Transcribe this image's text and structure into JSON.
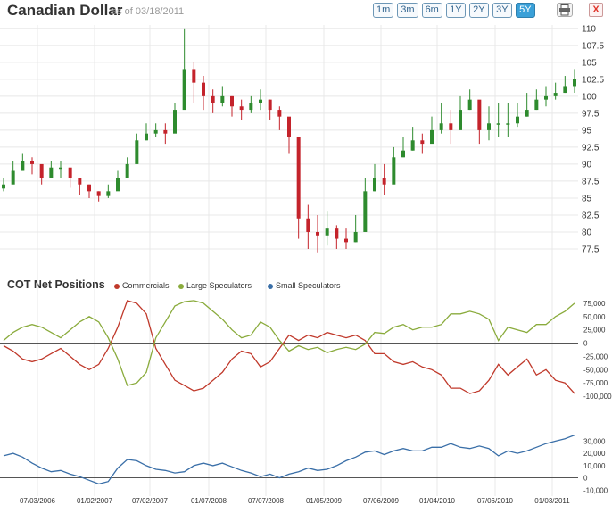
{
  "header": {
    "title": "Canadian Dollar",
    "as_of": "as of 03/18/2011",
    "ranges": [
      "1m",
      "3m",
      "6m",
      "1Y",
      "2Y",
      "3Y",
      "5Y"
    ],
    "active_range": "5Y",
    "print_icon": "printer-icon",
    "close_label": "X",
    "close_color": "#e0352b"
  },
  "cot": {
    "title": "COT Net Positions"
  },
  "chart_data": [
    {
      "type": "candlestick",
      "title": "Canadian Dollar",
      "ylim": [
        75,
        110.5
      ],
      "yticks": [
        "77.5",
        "80",
        "82.5",
        "85",
        "87.5",
        "90",
        "92.5",
        "95",
        "97.5",
        "100",
        "102.5",
        "105",
        "107.5",
        "110"
      ],
      "up_color": "#2e8b2e",
      "down_color": "#c4232b",
      "x": [
        "2006-03",
        "2006-04",
        "2006-05",
        "2006-06",
        "2006-07",
        "2006-08",
        "2006-09",
        "2006-10",
        "2006-11",
        "2006-12",
        "2007-01",
        "2007-02",
        "2007-03",
        "2007-04",
        "2007-05",
        "2007-06",
        "2007-07",
        "2007-08",
        "2007-09",
        "2007-10",
        "2007-11",
        "2007-12",
        "2008-01",
        "2008-02",
        "2008-03",
        "2008-04",
        "2008-05",
        "2008-06",
        "2008-07",
        "2008-08",
        "2008-09",
        "2008-10",
        "2008-11",
        "2008-12",
        "2009-01",
        "2009-02",
        "2009-03",
        "2009-04",
        "2009-05",
        "2009-06",
        "2009-07",
        "2009-08",
        "2009-09",
        "2009-10",
        "2009-11",
        "2009-12",
        "2010-01",
        "2010-02",
        "2010-03",
        "2010-04",
        "2010-05",
        "2010-06",
        "2010-07",
        "2010-08",
        "2010-09",
        "2010-10",
        "2010-11",
        "2010-12",
        "2011-01",
        "2011-02",
        "2011-03"
      ],
      "close": [
        87,
        89,
        90.5,
        90,
        88,
        89.5,
        89.5,
        88,
        87,
        86,
        85.3,
        86,
        88,
        90,
        93.5,
        94.5,
        95,
        94.5,
        98,
        104,
        102,
        100,
        99,
        100,
        98.5,
        98,
        99,
        99.5,
        98,
        97,
        94,
        82,
        80,
        79.5,
        80.5,
        79,
        78.5,
        80,
        86,
        88,
        87,
        91,
        92,
        93.5,
        93,
        95,
        96,
        95,
        98,
        99.5,
        95,
        96,
        96,
        96,
        97,
        98,
        99.5,
        100,
        100.5,
        101.5,
        102.5
      ],
      "high": [
        88,
        90.5,
        91.5,
        91,
        89,
        90.5,
        90.5,
        89,
        88,
        87,
        86,
        87,
        89,
        91,
        94.5,
        96,
        96,
        96,
        99,
        110,
        105,
        103,
        101,
        101.5,
        100,
        99.5,
        100,
        101,
        99.5,
        98.5,
        96,
        86,
        84,
        82.5,
        83,
        81,
        80.5,
        82.5,
        88,
        90,
        90,
        92.5,
        94,
        95.5,
        94.5,
        97,
        99,
        98,
        100,
        101,
        98.5,
        98.5,
        99,
        99,
        99,
        100.5,
        101,
        101.5,
        102,
        103,
        104
      ],
      "low": [
        86,
        87.5,
        89,
        88.5,
        87,
        88,
        88,
        86.5,
        85.5,
        85,
        84.5,
        85,
        86.5,
        88.5,
        92,
        93.5,
        94,
        93,
        95.5,
        101,
        99,
        98,
        97.5,
        98.5,
        97,
        96.5,
        97.5,
        98,
        96.5,
        95,
        91.5,
        79,
        77.5,
        77,
        78,
        77.5,
        77.5,
        78.5,
        83.5,
        86,
        85.5,
        89,
        91,
        92,
        91.5,
        93.5,
        94.5,
        93,
        96,
        98,
        93,
        93.5,
        94,
        94,
        95.5,
        97,
        98,
        98.5,
        99.5,
        100.5,
        100.5
      ]
    },
    {
      "type": "line",
      "title": "COT Net Positions",
      "ylim": [
        -110000,
        90000
      ],
      "yticks": [
        "75,000",
        "50,000",
        "25,000",
        "0",
        "-25,000",
        "-50,000",
        "-75,000",
        "-100,000"
      ],
      "series": [
        {
          "name": "Commercials",
          "color": "#c0392b",
          "values": [
            -5000,
            -15000,
            -30000,
            -35000,
            -30000,
            -20000,
            -10000,
            -25000,
            -40000,
            -50000,
            -40000,
            -10000,
            30000,
            80000,
            75000,
            55000,
            -10000,
            -40000,
            -70000,
            -80000,
            -90000,
            -85000,
            -70000,
            -55000,
            -30000,
            -15000,
            -20000,
            -45000,
            -35000,
            -10000,
            15000,
            5000,
            15000,
            10000,
            20000,
            15000,
            10000,
            15000,
            5000,
            -20000,
            -20000,
            -35000,
            -40000,
            -35000,
            -45000,
            -50000,
            -60000,
            -85000,
            -85000,
            -95000,
            -90000,
            -70000,
            -40000,
            -60000,
            -45000,
            -30000,
            -60000,
            -50000,
            -70000,
            -75000,
            -95000
          ]
        },
        {
          "name": "Large Speculators",
          "color": "#8aab3c",
          "values": [
            5000,
            20000,
            30000,
            35000,
            30000,
            20000,
            10000,
            25000,
            40000,
            50000,
            40000,
            10000,
            -30000,
            -80000,
            -75000,
            -55000,
            10000,
            40000,
            70000,
            78000,
            80000,
            75000,
            60000,
            45000,
            25000,
            10000,
            15000,
            40000,
            30000,
            5000,
            -15000,
            -5000,
            -12000,
            -8000,
            -18000,
            -12000,
            -8000,
            -12000,
            -2000,
            20000,
            18000,
            30000,
            35000,
            25000,
            30000,
            30000,
            35000,
            55000,
            55000,
            60000,
            55000,
            45000,
            5000,
            30000,
            25000,
            20000,
            35000,
            35000,
            50000,
            60000,
            75000
          ]
        },
        {
          "name": "Small Speculators",
          "color": "#3a6fa8",
          "values": [
            18000,
            20000,
            17000,
            12000,
            8000,
            5000,
            6000,
            3000,
            1000,
            -2000,
            -5000,
            -3000,
            8000,
            15000,
            14000,
            10000,
            7000,
            6000,
            4000,
            5000,
            10000,
            12000,
            10000,
            12000,
            9000,
            6000,
            4000,
            1000,
            3000,
            0,
            3000,
            5000,
            8000,
            6000,
            7000,
            10000,
            14000,
            17000,
            21000,
            22000,
            19000,
            22000,
            24000,
            22000,
            22000,
            25000,
            25000,
            28000,
            25000,
            24000,
            26000,
            24000,
            18000,
            22000,
            20000,
            22000,
            25000,
            28000,
            30000,
            32000,
            35000
          ]
        }
      ]
    },
    {
      "type": "line",
      "title": "",
      "ylim": [
        -12000,
        42000
      ],
      "yticks": [
        "30,000",
        "20,000",
        "10,000",
        "0",
        "-10,000"
      ]
    }
  ],
  "x_axis": {
    "ticks": [
      "07/03/2006",
      "01/02/2007",
      "07/02/2007",
      "01/07/2008",
      "07/07/2008",
      "01/05/2009",
      "07/06/2009",
      "01/04/2010",
      "07/06/2010",
      "01/03/2011"
    ]
  }
}
